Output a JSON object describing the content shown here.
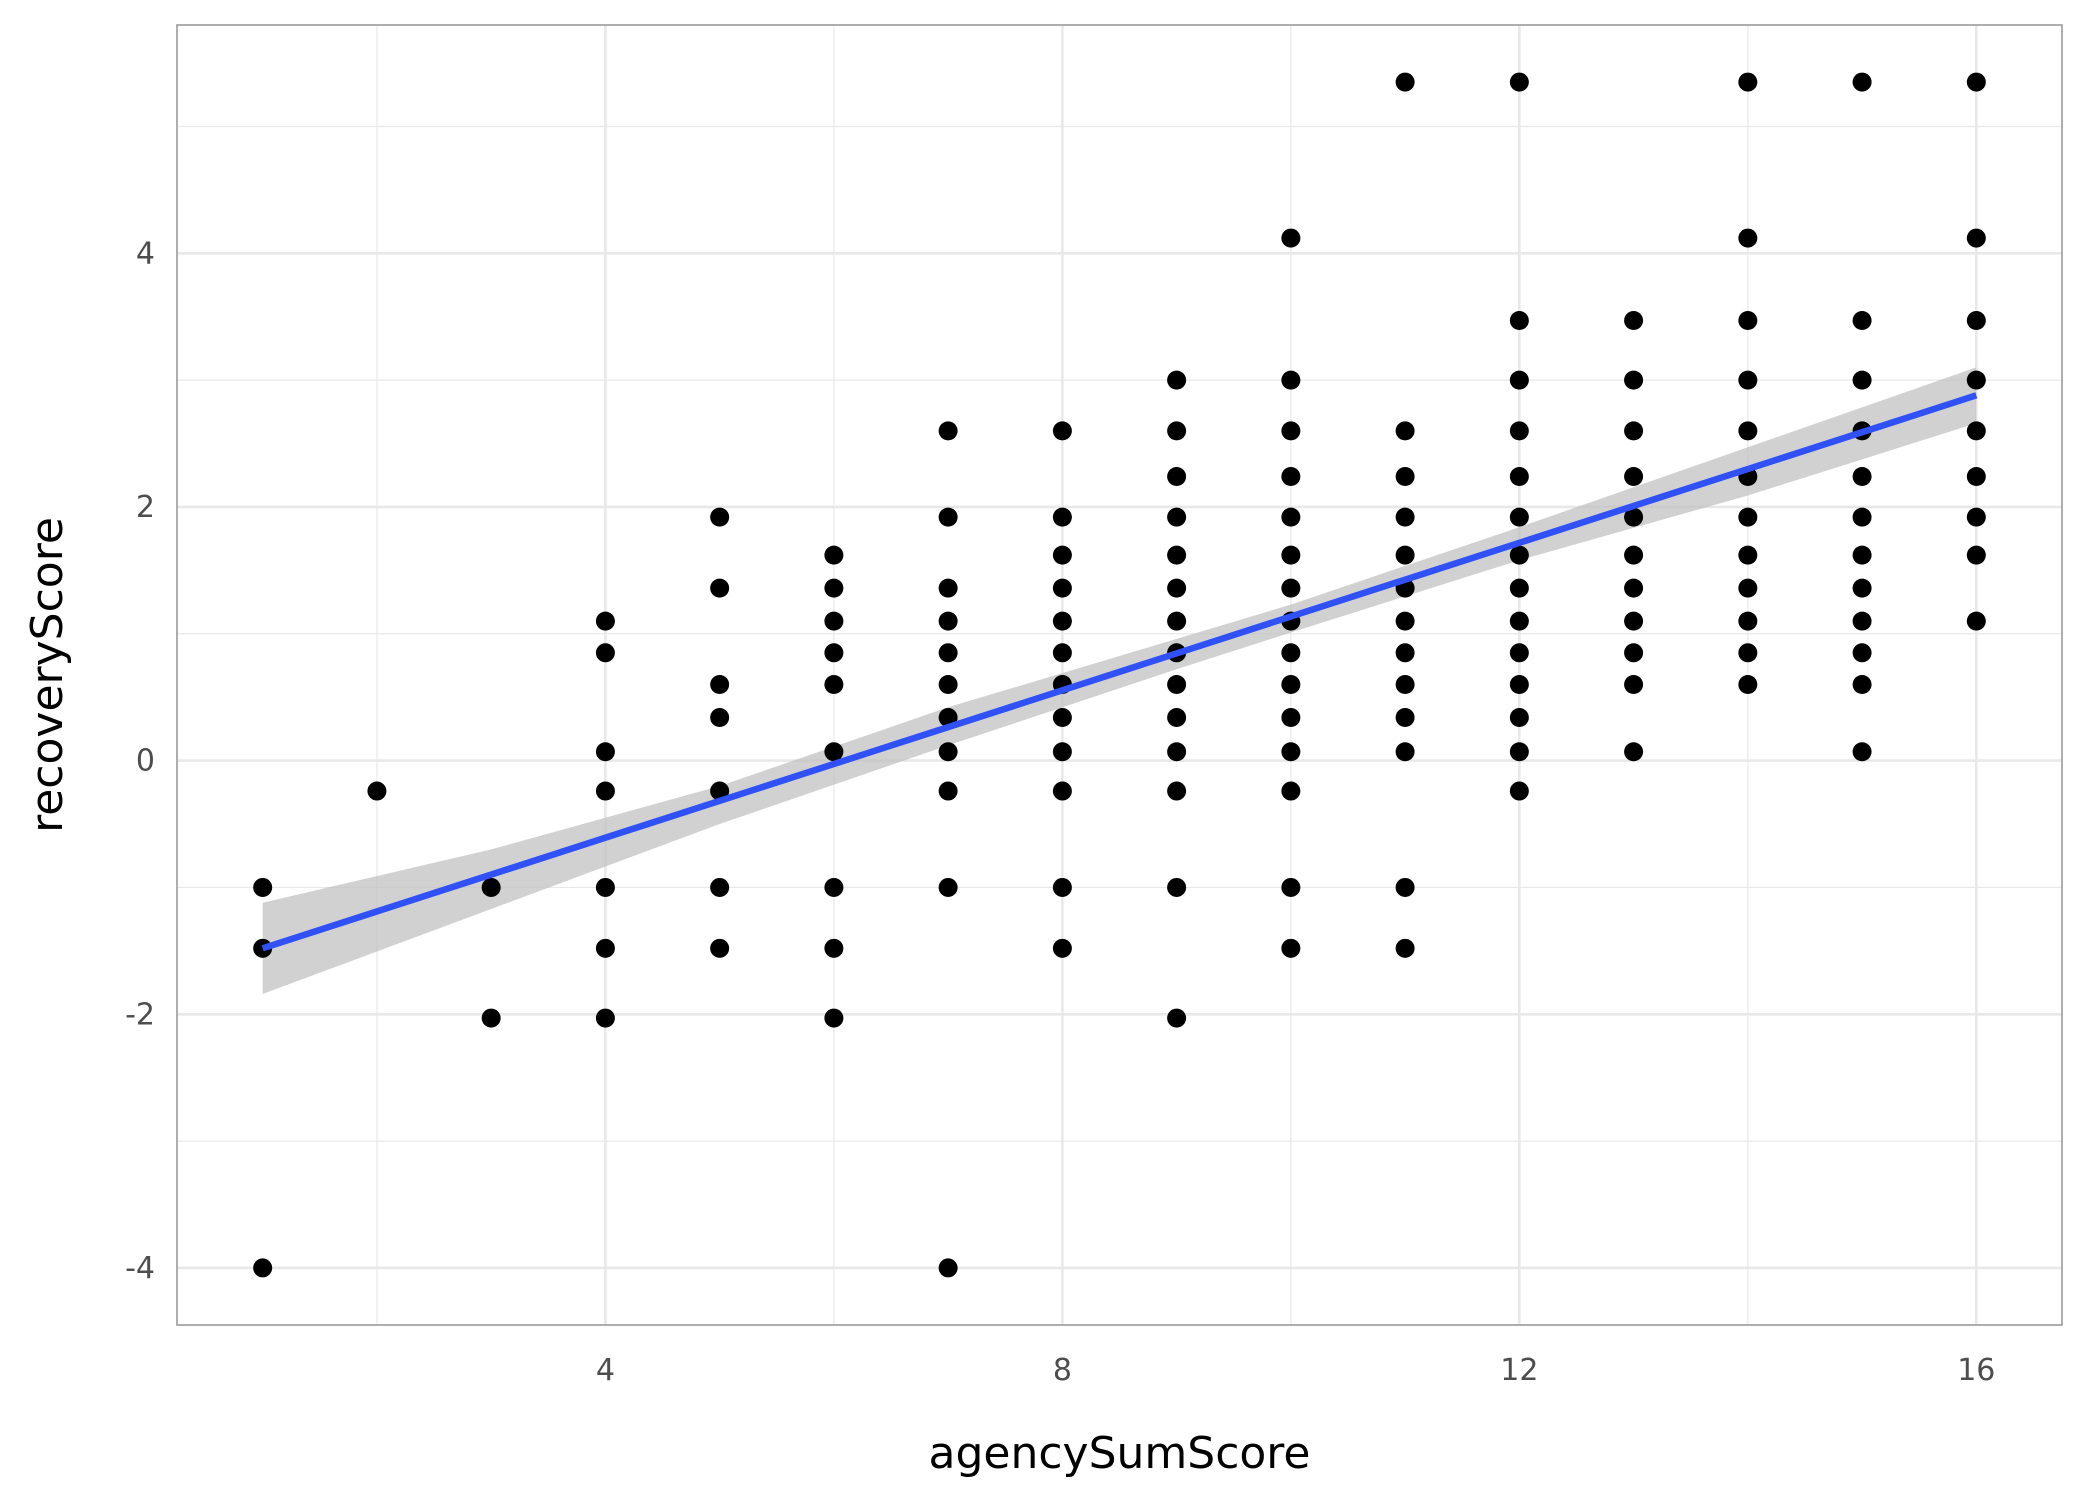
{
  "chart_data": {
    "type": "scatter",
    "title": "",
    "xlabel": "agencySumScore",
    "ylabel": "recoveryScore",
    "xlim": [
      0.25,
      16.75
    ],
    "ylim": [
      -4.45,
      5.8
    ],
    "x_ticks": [
      4,
      8,
      12,
      16
    ],
    "x_tick_labels": [
      "4",
      "8",
      "12",
      "16"
    ],
    "y_ticks": [
      -4,
      -2,
      0,
      2,
      4
    ],
    "y_tick_labels": [
      "-4",
      "-2",
      "0",
      "2",
      "4"
    ],
    "grid": true,
    "legend": "none",
    "colors": {
      "points": "#000000",
      "fit_line": "#3050f8",
      "confidence_band": "#bfbfbf",
      "grid": "#e8e8e8",
      "panel_border": "#9a9a9a"
    },
    "points": [
      [
        1,
        -1.0
      ],
      [
        1,
        -1.48
      ],
      [
        1,
        -4.0
      ],
      [
        2,
        -0.24
      ],
      [
        3,
        -1.0
      ],
      [
        3,
        -2.03
      ],
      [
        4,
        1.1
      ],
      [
        4,
        0.85
      ],
      [
        4,
        0.07
      ],
      [
        4,
        -0.24
      ],
      [
        4,
        -1.0
      ],
      [
        4,
        -1.48
      ],
      [
        4,
        -2.03
      ],
      [
        5,
        1.92
      ],
      [
        5,
        1.36
      ],
      [
        5,
        0.6
      ],
      [
        5,
        0.34
      ],
      [
        5,
        -0.24
      ],
      [
        5,
        -1.0
      ],
      [
        5,
        -1.48
      ],
      [
        6,
        1.62
      ],
      [
        6,
        1.36
      ],
      [
        6,
        1.1
      ],
      [
        6,
        0.85
      ],
      [
        6,
        0.6
      ],
      [
        6,
        0.07
      ],
      [
        6,
        -1.0
      ],
      [
        6,
        -1.48
      ],
      [
        6,
        -2.03
      ],
      [
        7,
        2.6
      ],
      [
        7,
        1.92
      ],
      [
        7,
        1.36
      ],
      [
        7,
        1.1
      ],
      [
        7,
        0.85
      ],
      [
        7,
        0.6
      ],
      [
        7,
        0.34
      ],
      [
        7,
        0.07
      ],
      [
        7,
        -0.24
      ],
      [
        7,
        -1.0
      ],
      [
        7,
        -4.0
      ],
      [
        8,
        2.6
      ],
      [
        8,
        1.92
      ],
      [
        8,
        1.62
      ],
      [
        8,
        1.36
      ],
      [
        8,
        1.1
      ],
      [
        8,
        0.85
      ],
      [
        8,
        0.6
      ],
      [
        8,
        0.34
      ],
      [
        8,
        0.07
      ],
      [
        8,
        -0.24
      ],
      [
        8,
        -1.0
      ],
      [
        8,
        -1.48
      ],
      [
        9,
        3.0
      ],
      [
        9,
        2.6
      ],
      [
        9,
        2.24
      ],
      [
        9,
        1.92
      ],
      [
        9,
        1.62
      ],
      [
        9,
        1.36
      ],
      [
        9,
        1.1
      ],
      [
        9,
        0.85
      ],
      [
        9,
        0.6
      ],
      [
        9,
        0.34
      ],
      [
        9,
        0.07
      ],
      [
        9,
        -0.24
      ],
      [
        9,
        -1.0
      ],
      [
        9,
        -2.03
      ],
      [
        10,
        4.12
      ],
      [
        10,
        3.0
      ],
      [
        10,
        2.6
      ],
      [
        10,
        2.24
      ],
      [
        10,
        1.92
      ],
      [
        10,
        1.62
      ],
      [
        10,
        1.36
      ],
      [
        10,
        1.1
      ],
      [
        10,
        0.85
      ],
      [
        10,
        0.6
      ],
      [
        10,
        0.34
      ],
      [
        10,
        0.07
      ],
      [
        10,
        -0.24
      ],
      [
        10,
        -1.0
      ],
      [
        10,
        -1.48
      ],
      [
        11,
        5.35
      ],
      [
        11,
        2.6
      ],
      [
        11,
        2.24
      ],
      [
        11,
        1.92
      ],
      [
        11,
        1.62
      ],
      [
        11,
        1.36
      ],
      [
        11,
        1.1
      ],
      [
        11,
        0.85
      ],
      [
        11,
        0.6
      ],
      [
        11,
        0.34
      ],
      [
        11,
        0.07
      ],
      [
        11,
        -1.0
      ],
      [
        11,
        -1.48
      ],
      [
        12,
        5.35
      ],
      [
        12,
        3.47
      ],
      [
        12,
        3.0
      ],
      [
        12,
        2.6
      ],
      [
        12,
        2.24
      ],
      [
        12,
        1.92
      ],
      [
        12,
        1.62
      ],
      [
        12,
        1.36
      ],
      [
        12,
        1.1
      ],
      [
        12,
        0.85
      ],
      [
        12,
        0.6
      ],
      [
        12,
        0.34
      ],
      [
        12,
        0.07
      ],
      [
        12,
        -0.24
      ],
      [
        13,
        3.47
      ],
      [
        13,
        3.0
      ],
      [
        13,
        2.6
      ],
      [
        13,
        2.24
      ],
      [
        13,
        1.92
      ],
      [
        13,
        1.62
      ],
      [
        13,
        1.36
      ],
      [
        13,
        1.1
      ],
      [
        13,
        0.85
      ],
      [
        13,
        0.6
      ],
      [
        13,
        0.07
      ],
      [
        14,
        5.35
      ],
      [
        14,
        4.12
      ],
      [
        14,
        3.47
      ],
      [
        14,
        3.0
      ],
      [
        14,
        2.6
      ],
      [
        14,
        2.24
      ],
      [
        14,
        1.92
      ],
      [
        14,
        1.62
      ],
      [
        14,
        1.36
      ],
      [
        14,
        1.1
      ],
      [
        14,
        0.85
      ],
      [
        14,
        0.6
      ],
      [
        15,
        5.35
      ],
      [
        15,
        3.47
      ],
      [
        15,
        3.0
      ],
      [
        15,
        2.6
      ],
      [
        15,
        2.24
      ],
      [
        15,
        1.92
      ],
      [
        15,
        1.62
      ],
      [
        15,
        1.36
      ],
      [
        15,
        1.1
      ],
      [
        15,
        0.85
      ],
      [
        15,
        0.6
      ],
      [
        15,
        0.07
      ],
      [
        16,
        5.35
      ],
      [
        16,
        4.12
      ],
      [
        16,
        3.47
      ],
      [
        16,
        3.0
      ],
      [
        16,
        2.6
      ],
      [
        16,
        2.24
      ],
      [
        16,
        1.92
      ],
      [
        16,
        1.62
      ],
      [
        16,
        1.1
      ]
    ],
    "fit_line": {
      "x_start": 1,
      "y_start": -1.48,
      "x_end": 16,
      "y_end": 2.88
    },
    "confidence_band": [
      [
        1,
        -1.84,
        -1.12
      ],
      [
        3,
        -1.17,
        -0.7
      ],
      [
        5,
        -0.5,
        -0.2
      ],
      [
        7,
        0.12,
        0.42
      ],
      [
        9,
        0.72,
        0.96
      ],
      [
        10,
        1.01,
        1.23
      ],
      [
        12,
        1.58,
        1.84
      ],
      [
        14,
        2.09,
        2.47
      ],
      [
        16,
        2.66,
        3.1
      ]
    ]
  }
}
